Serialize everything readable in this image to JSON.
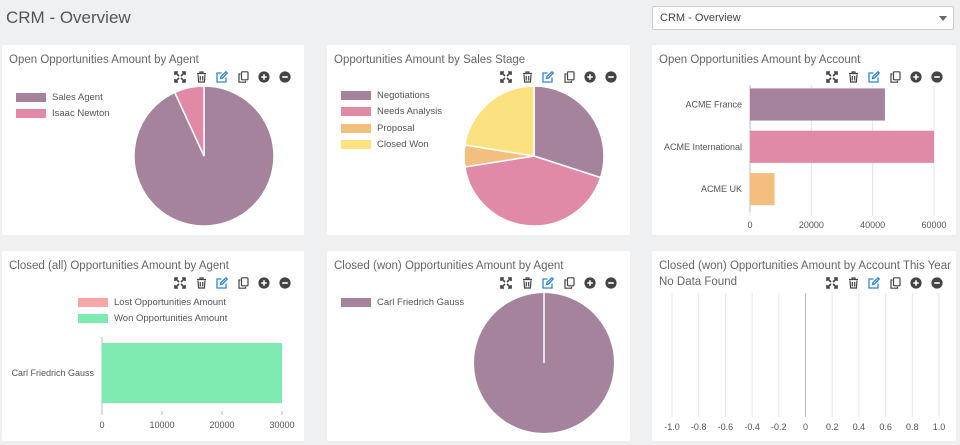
{
  "header": {
    "title": "CRM - Overview",
    "dashboard_select": "CRM - Overview"
  },
  "colors": {
    "purple": "#a6839c",
    "pink": "#e08aa7",
    "orange": "#f3bf7f",
    "yellow": "#fbe17f",
    "salmon": "#f7a8a6",
    "green": "#7debb0",
    "accent_edit": "#2f86d5",
    "icon_dark": "#444444"
  },
  "icons": [
    "expand-icon",
    "trash-icon",
    "edit-icon",
    "copy-icon",
    "plus-circle-icon",
    "minus-circle-icon"
  ],
  "cards": [
    {
      "title": "Open Opportunities Amount by Agent"
    },
    {
      "title": "Opportunities Amount by Sales Stage"
    },
    {
      "title": "Open Opportunities Amount by Account"
    },
    {
      "title": "Closed (all) Opportunities Amount by Agent"
    },
    {
      "title": "Closed (won) Opportunities Amount by Agent"
    },
    {
      "title": "Closed (won) Opportunities Amount by Account This Year",
      "subtitle": "No Data Found"
    }
  ],
  "chart_data": [
    {
      "type": "pie",
      "legend_position": "left",
      "series": [
        {
          "name": "Sales Agent",
          "value": 95000,
          "color": "#a6839c"
        },
        {
          "name": "Isaac Newton",
          "value": 7000,
          "color": "#e08aa7"
        }
      ]
    },
    {
      "type": "pie",
      "legend_position": "left",
      "series": [
        {
          "name": "Negotiations",
          "value": 60000,
          "color": "#a6839c"
        },
        {
          "name": "Needs Analysis",
          "value": 85000,
          "color": "#e08aa7"
        },
        {
          "name": "Proposal",
          "value": 10000,
          "color": "#f3bf7f"
        },
        {
          "name": "Closed Won",
          "value": 45000,
          "color": "#fbe17f"
        }
      ]
    },
    {
      "type": "bar",
      "orientation": "horizontal",
      "categories": [
        "ACME France",
        "ACME International",
        "ACME UK"
      ],
      "values": [
        44000,
        60000,
        8000
      ],
      "colors": [
        "#a6839c",
        "#e08aa7",
        "#f3bf7f"
      ],
      "xlim": [
        0,
        60000
      ],
      "xticks": [
        "0",
        "20000",
        "40000",
        "60000"
      ],
      "grid": true
    },
    {
      "type": "bar",
      "orientation": "horizontal",
      "stacked": true,
      "categories": [
        "Carl Friedrich Gauss"
      ],
      "series": [
        {
          "name": "Lost Opportunities Amount",
          "values": [
            0
          ],
          "color": "#f7a8a6"
        },
        {
          "name": "Won Opportunities Amount",
          "values": [
            30000
          ],
          "color": "#7debb0"
        }
      ],
      "xlim": [
        0,
        30000
      ],
      "xticks": [
        "0",
        "10000",
        "20000",
        "30000"
      ],
      "legend_position": "top"
    },
    {
      "type": "pie",
      "legend_position": "left",
      "series": [
        {
          "name": "Carl Friedrich Gauss",
          "value": 30000,
          "color": "#a6839c"
        }
      ]
    },
    {
      "type": "bar",
      "orientation": "horizontal",
      "categories": [],
      "values": [],
      "xlim": [
        -1.0,
        1.0
      ],
      "xticks": [
        "-1.0",
        "-0.8",
        "-0.6",
        "-0.4",
        "-0.2",
        "0",
        "0.2",
        "0.4",
        "0.6",
        "0.8",
        "1.0"
      ],
      "grid": true
    }
  ]
}
